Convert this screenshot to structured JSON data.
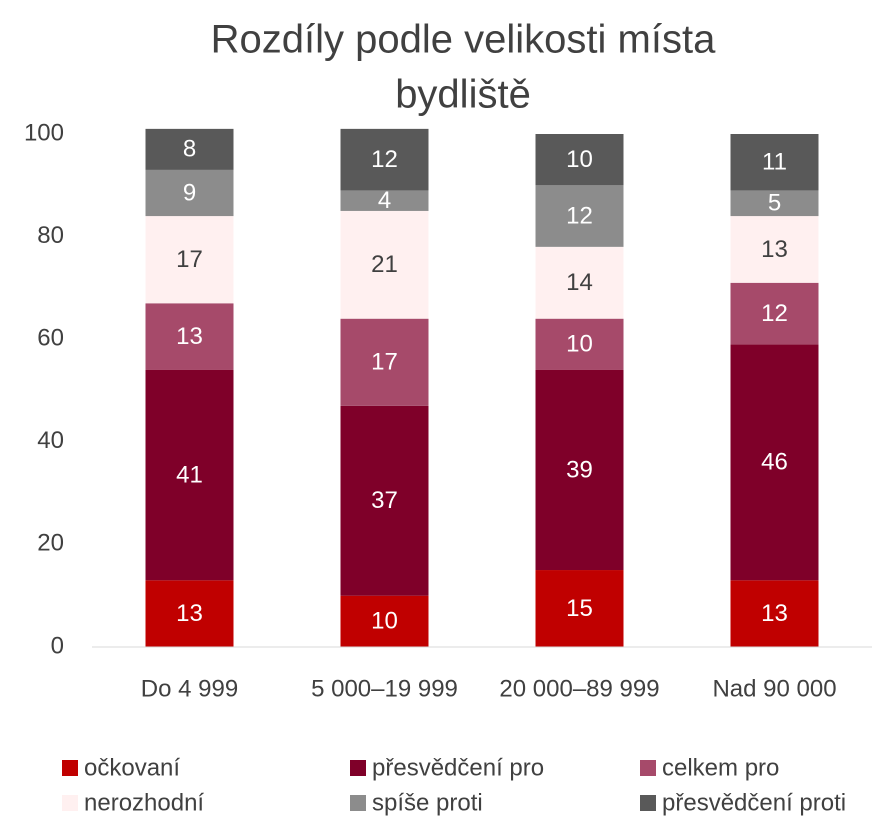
{
  "chart_data": {
    "type": "stacked-bar",
    "title": [
      "Rozdíly podle velikosti místa",
      "bydliště"
    ],
    "categories": [
      "Do 4 999",
      "5 000–19 999",
      "20 000–89 999",
      "Nad 90 000"
    ],
    "series": [
      {
        "name": "očkovaní",
        "color": "#c00000",
        "values": [
          13,
          10,
          15,
          13
        ]
      },
      {
        "name": "přesvědčení pro",
        "color": "#7f0029",
        "values": [
          41,
          37,
          39,
          46
        ]
      },
      {
        "name": "celkem pro",
        "color": "#a64a6a",
        "values": [
          13,
          17,
          10,
          12
        ]
      },
      {
        "name": "nerozhodní",
        "color": "#fff0f0",
        "values": [
          17,
          21,
          14,
          13
        ]
      },
      {
        "name": "spíše proti",
        "color": "#8c8c8c",
        "values": [
          9,
          4,
          12,
          5
        ]
      },
      {
        "name": "přesvědčení proti",
        "color": "#595959",
        "values": [
          8,
          12,
          10,
          11
        ]
      }
    ],
    "ylim": [
      0,
      100
    ],
    "yticks": [
      0,
      20,
      40,
      60,
      80,
      100
    ],
    "grid": false,
    "legend": "bottom"
  }
}
